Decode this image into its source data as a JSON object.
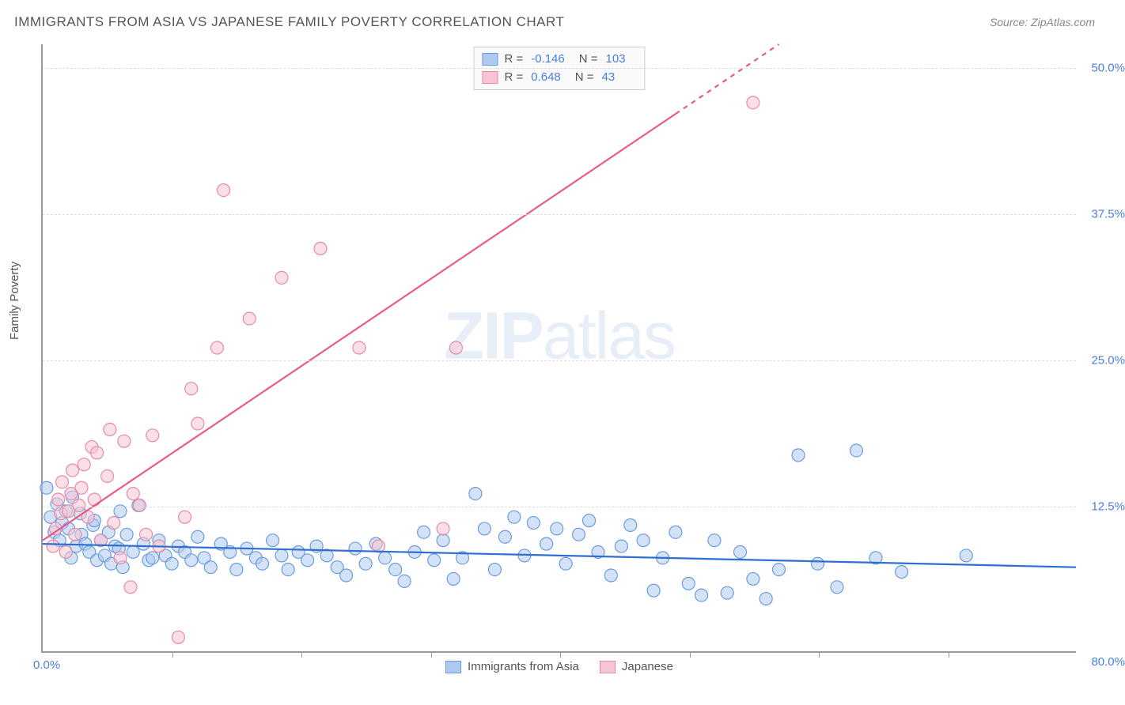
{
  "title": "IMMIGRANTS FROM ASIA VS JAPANESE FAMILY POVERTY CORRELATION CHART",
  "source": "Source: ZipAtlas.com",
  "ylabel": "Family Poverty",
  "watermark_bold": "ZIP",
  "watermark_rest": "atlas",
  "chart": {
    "type": "scatter",
    "xlim": [
      0,
      80
    ],
    "ylim": [
      0,
      52
    ],
    "x_origin_label": "0.0%",
    "x_max_label": "80.0%",
    "xtick_positions": [
      10,
      20,
      30,
      40,
      50,
      60,
      70
    ],
    "ytick_positions": [
      12.5,
      25.0,
      37.5,
      50.0
    ],
    "ytick_labels": [
      "12.5%",
      "25.0%",
      "37.5%",
      "50.0%"
    ],
    "grid_color": "#dddddd",
    "axis_color": "#999999",
    "background_color": "#ffffff",
    "label_color": "#4a7fd8",
    "marker_radius": 8,
    "marker_opacity": 0.55,
    "series": [
      {
        "name": "Immigrants from Asia",
        "color_fill": "#aecbef",
        "color_stroke": "#6a9de0",
        "R": "-0.146",
        "N": "103",
        "trend": {
          "x1": 0,
          "y1": 9.2,
          "x2": 80,
          "y2": 7.2,
          "color": "#2f6fd0",
          "width": 2.2
        },
        "points": [
          [
            0.3,
            14.0
          ],
          [
            0.6,
            11.5
          ],
          [
            0.9,
            10.2
          ],
          [
            1.1,
            12.6
          ],
          [
            1.3,
            9.5
          ],
          [
            1.5,
            11.0
          ],
          [
            1.8,
            12.0
          ],
          [
            2.0,
            10.5
          ],
          [
            2.3,
            13.2
          ],
          [
            2.6,
            9.0
          ],
          [
            2.9,
            11.8
          ],
          [
            3.0,
            10.0
          ],
          [
            3.3,
            9.2
          ],
          [
            3.6,
            8.5
          ],
          [
            3.9,
            10.8
          ],
          [
            4.2,
            7.8
          ],
          [
            4.5,
            9.5
          ],
          [
            4.8,
            8.2
          ],
          [
            5.1,
            10.2
          ],
          [
            5.3,
            7.5
          ],
          [
            5.6,
            9.0
          ],
          [
            5.9,
            8.8
          ],
          [
            6.2,
            7.2
          ],
          [
            6.5,
            10.0
          ],
          [
            7.0,
            8.5
          ],
          [
            7.4,
            12.5
          ],
          [
            7.8,
            9.2
          ],
          [
            8.2,
            7.8
          ],
          [
            8.5,
            8.0
          ],
          [
            9.0,
            9.5
          ],
          [
            9.5,
            8.2
          ],
          [
            10.0,
            7.5
          ],
          [
            10.5,
            9.0
          ],
          [
            11.0,
            8.5
          ],
          [
            11.5,
            7.8
          ],
          [
            12.0,
            9.8
          ],
          [
            12.5,
            8.0
          ],
          [
            13.0,
            7.2
          ],
          [
            13.8,
            9.2
          ],
          [
            14.5,
            8.5
          ],
          [
            15.0,
            7.0
          ],
          [
            15.8,
            8.8
          ],
          [
            16.5,
            8.0
          ],
          [
            17.0,
            7.5
          ],
          [
            17.8,
            9.5
          ],
          [
            18.5,
            8.2
          ],
          [
            19.0,
            7.0
          ],
          [
            19.8,
            8.5
          ],
          [
            20.5,
            7.8
          ],
          [
            21.2,
            9.0
          ],
          [
            22.0,
            8.2
          ],
          [
            22.8,
            7.2
          ],
          [
            23.5,
            6.5
          ],
          [
            24.2,
            8.8
          ],
          [
            25.0,
            7.5
          ],
          [
            25.8,
            9.2
          ],
          [
            26.5,
            8.0
          ],
          [
            27.3,
            7.0
          ],
          [
            28.0,
            6.0
          ],
          [
            28.8,
            8.5
          ],
          [
            29.5,
            10.2
          ],
          [
            30.3,
            7.8
          ],
          [
            31.0,
            9.5
          ],
          [
            31.8,
            6.2
          ],
          [
            32.5,
            8.0
          ],
          [
            33.5,
            13.5
          ],
          [
            34.2,
            10.5
          ],
          [
            35.0,
            7.0
          ],
          [
            35.8,
            9.8
          ],
          [
            36.5,
            11.5
          ],
          [
            37.3,
            8.2
          ],
          [
            38.0,
            11.0
          ],
          [
            39.0,
            9.2
          ],
          [
            39.8,
            10.5
          ],
          [
            40.5,
            7.5
          ],
          [
            41.5,
            10.0
          ],
          [
            42.3,
            11.2
          ],
          [
            43.0,
            8.5
          ],
          [
            44.0,
            6.5
          ],
          [
            44.8,
            9.0
          ],
          [
            45.5,
            10.8
          ],
          [
            46.5,
            9.5
          ],
          [
            47.3,
            5.2
          ],
          [
            48.0,
            8.0
          ],
          [
            49.0,
            10.2
          ],
          [
            50.0,
            5.8
          ],
          [
            51.0,
            4.8
          ],
          [
            52.0,
            9.5
          ],
          [
            53.0,
            5.0
          ],
          [
            54.0,
            8.5
          ],
          [
            55.0,
            6.2
          ],
          [
            56.0,
            4.5
          ],
          [
            57.0,
            7.0
          ],
          [
            58.5,
            16.8
          ],
          [
            60.0,
            7.5
          ],
          [
            61.5,
            5.5
          ],
          [
            63.0,
            17.2
          ],
          [
            64.5,
            8.0
          ],
          [
            66.5,
            6.8
          ],
          [
            71.5,
            8.2
          ],
          [
            2.2,
            8.0
          ],
          [
            4.0,
            11.2
          ],
          [
            6.0,
            12.0
          ]
        ]
      },
      {
        "name": "Japanese",
        "color_fill": "#f5c5d3",
        "color_stroke": "#e88aa5",
        "R": "0.648",
        "N": "43",
        "trend": {
          "x1": 0,
          "y1": 9.5,
          "x2": 57,
          "y2": 52,
          "color": "#e85a8a",
          "width": 2.2,
          "dash_after_x": 49
        },
        "points": [
          [
            0.8,
            9.0
          ],
          [
            1.0,
            10.5
          ],
          [
            1.2,
            13.0
          ],
          [
            1.4,
            11.8
          ],
          [
            1.5,
            14.5
          ],
          [
            1.8,
            8.5
          ],
          [
            2.0,
            12.0
          ],
          [
            2.2,
            13.5
          ],
          [
            2.3,
            15.5
          ],
          [
            2.5,
            10.0
          ],
          [
            2.8,
            12.5
          ],
          [
            3.0,
            14.0
          ],
          [
            3.2,
            16.0
          ],
          [
            3.5,
            11.5
          ],
          [
            3.8,
            17.5
          ],
          [
            4.0,
            13.0
          ],
          [
            4.2,
            17.0
          ],
          [
            4.5,
            9.5
          ],
          [
            5.0,
            15.0
          ],
          [
            5.2,
            19.0
          ],
          [
            5.5,
            11.0
          ],
          [
            6.0,
            8.0
          ],
          [
            6.3,
            18.0
          ],
          [
            6.8,
            5.5
          ],
          [
            7.0,
            13.5
          ],
          [
            7.5,
            12.5
          ],
          [
            8.0,
            10.0
          ],
          [
            8.5,
            18.5
          ],
          [
            9.0,
            9.0
          ],
          [
            10.5,
            1.2
          ],
          [
            11.0,
            11.5
          ],
          [
            11.5,
            22.5
          ],
          [
            12.0,
            19.5
          ],
          [
            13.5,
            26.0
          ],
          [
            14.0,
            39.5
          ],
          [
            16.0,
            28.5
          ],
          [
            18.5,
            32.0
          ],
          [
            21.5,
            34.5
          ],
          [
            24.5,
            26.0
          ],
          [
            26.0,
            9.0
          ],
          [
            31.0,
            10.5
          ],
          [
            32.0,
            26.0
          ],
          [
            55.0,
            47.0
          ]
        ]
      }
    ],
    "legend_bottom": [
      {
        "label": "Immigrants from Asia",
        "fill": "#aecbef",
        "stroke": "#6a9de0"
      },
      {
        "label": "Japanese",
        "fill": "#f5c5d3",
        "stroke": "#e88aa5"
      }
    ]
  }
}
